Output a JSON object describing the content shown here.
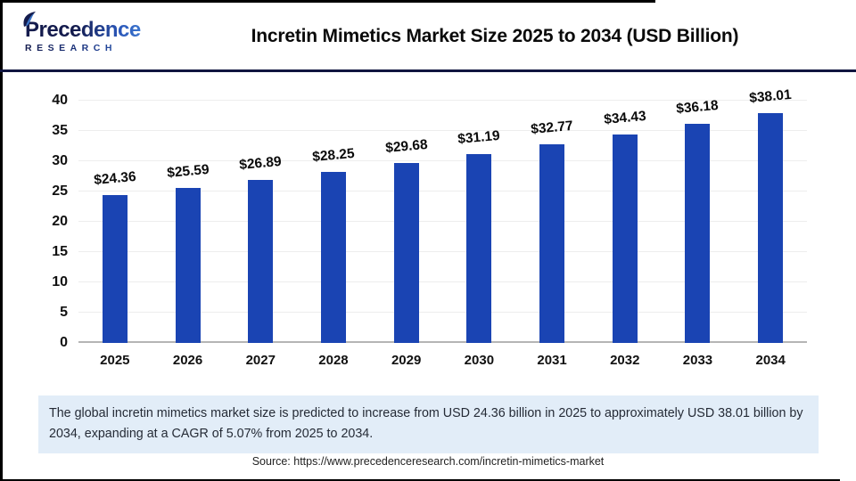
{
  "header": {
    "logo": {
      "name": "Precedence",
      "subtitle": "RESEARCH"
    },
    "title": "Incretin Mimetics Market Size 2025 to 2034 (USD Billion)"
  },
  "chart_data": {
    "type": "bar",
    "title": "Incretin Mimetics Market Size 2025 to 2034 (USD Billion)",
    "categories": [
      "2025",
      "2026",
      "2027",
      "2028",
      "2029",
      "2030",
      "2031",
      "2032",
      "2033",
      "2034"
    ],
    "values": [
      24.36,
      25.59,
      26.89,
      28.25,
      29.68,
      31.19,
      32.77,
      34.43,
      36.18,
      38.01
    ],
    "value_labels": [
      "$24.36",
      "$25.59",
      "$26.89",
      "$28.25",
      "$29.68",
      "$31.19",
      "$32.77",
      "$34.43",
      "$36.18",
      "$38.01"
    ],
    "unit": "USD Billion",
    "xlabel": "",
    "ylabel": "",
    "ylim": [
      0,
      40
    ],
    "yticks": [
      0,
      5,
      10,
      15,
      20,
      25,
      30,
      35,
      40
    ],
    "grid": true,
    "legend": "none",
    "bar_color": "#1a44b3"
  },
  "note": {
    "text": "The global incretin mimetics market size is predicted to increase from USD 24.36 billion in 2025 to approximately USD 38.01 billion by 2034, expanding at a CAGR of 5.07% from 2025 to 2034."
  },
  "source": {
    "text": "Source: https://www.precedenceresearch.com/incretin-mimetics-market"
  },
  "colors": {
    "bar": "#1a44b3",
    "note_background": "#e2edf8",
    "header_rule": "#101540",
    "logo_dark": "#141b4d",
    "logo_light": "#3f7fd6",
    "gridline": "#ededed",
    "axis_line": "#b5b5b5"
  }
}
